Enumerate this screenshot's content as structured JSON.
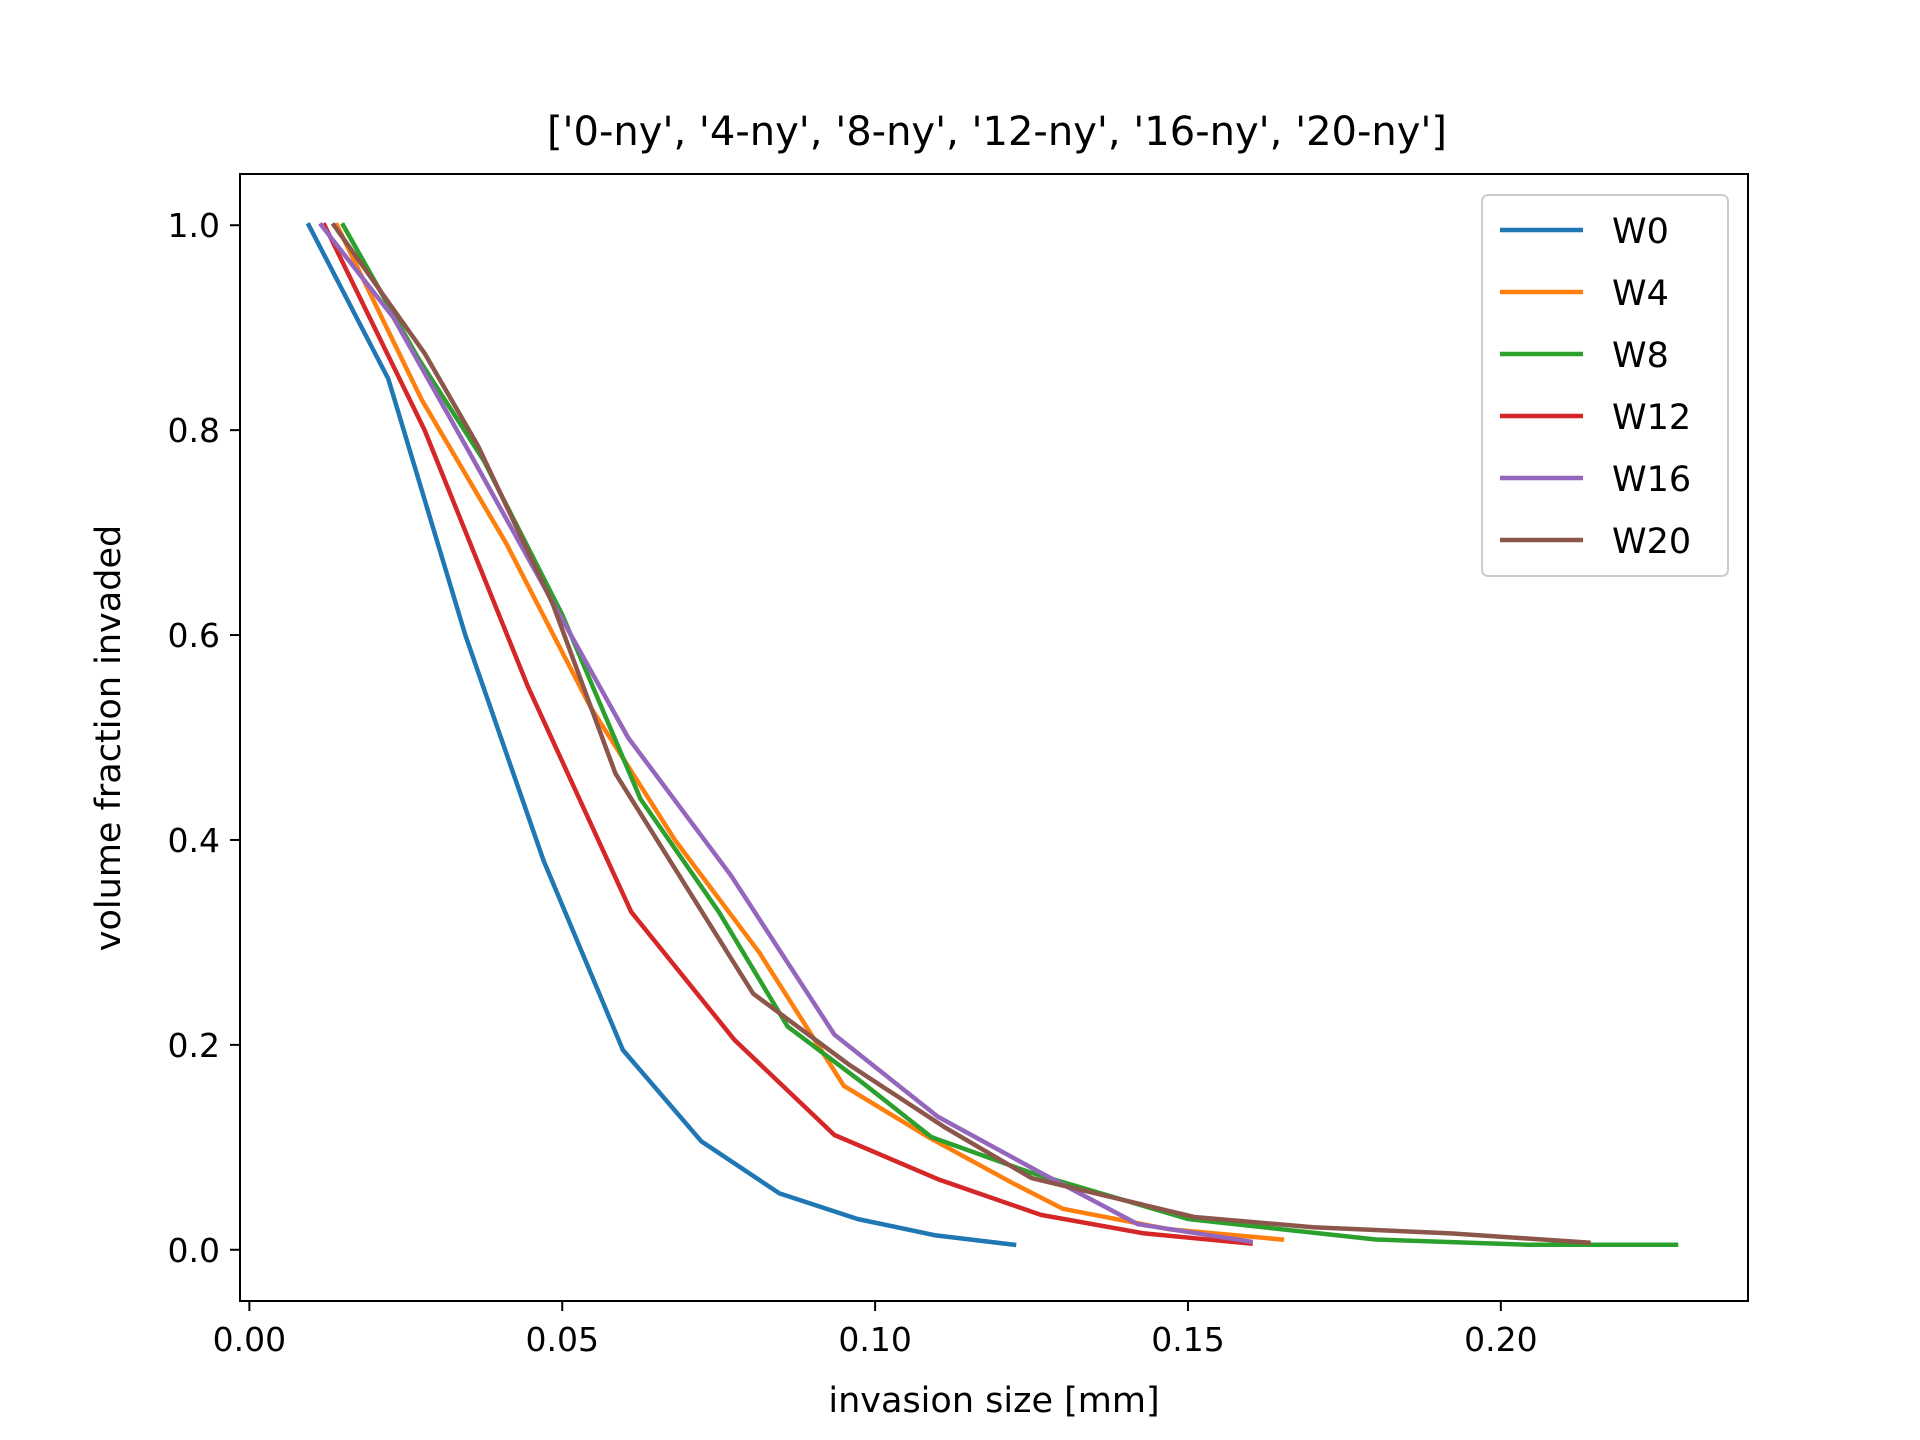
{
  "chart_data": {
    "type": "line",
    "title": "['0-ny', '4-ny', '8-ny', '12-ny', '16-ny', '20-ny']",
    "xlabel": "invasion size [mm]",
    "ylabel": "volume fraction invaded",
    "xlim": [
      -0.0015,
      0.2395
    ],
    "ylim": [
      -0.05,
      1.05
    ],
    "xticks": [
      0.0,
      0.05,
      0.1,
      0.15,
      0.2
    ],
    "xtick_labels": [
      "0.00",
      "0.05",
      "0.10",
      "0.15",
      "0.20"
    ],
    "yticks": [
      0.0,
      0.2,
      0.4,
      0.6,
      0.8,
      1.0
    ],
    "ytick_labels": [
      "0.0",
      "0.2",
      "0.4",
      "0.6",
      "0.8",
      "1.0"
    ],
    "grid": false,
    "legend_position": "top-right",
    "series": [
      {
        "name": "W0",
        "color": "#1f77b4",
        "points": [
          [
            0.0095,
            1.0
          ],
          [
            0.0222,
            0.85
          ],
          [
            0.0345,
            0.6
          ],
          [
            0.047,
            0.38
          ],
          [
            0.0597,
            0.195
          ],
          [
            0.0722,
            0.106
          ],
          [
            0.0847,
            0.055
          ],
          [
            0.0972,
            0.03
          ],
          [
            0.1097,
            0.014
          ],
          [
            0.1222,
            0.005
          ]
        ]
      },
      {
        "name": "W4",
        "color": "#ff7f0e",
        "points": [
          [
            0.014,
            1.0
          ],
          [
            0.0275,
            0.83
          ],
          [
            0.041,
            0.69
          ],
          [
            0.0545,
            0.53
          ],
          [
            0.068,
            0.4
          ],
          [
            0.0815,
            0.29
          ],
          [
            0.095,
            0.16
          ],
          [
            0.1085,
            0.11
          ],
          [
            0.122,
            0.065
          ],
          [
            0.13,
            0.04
          ],
          [
            0.147,
            0.02
          ],
          [
            0.165,
            0.01
          ]
        ]
      },
      {
        "name": "W8",
        "color": "#2ca02c",
        "points": [
          [
            0.015,
            1.0
          ],
          [
            0.027,
            0.87
          ],
          [
            0.0375,
            0.77
          ],
          [
            0.05,
            0.62
          ],
          [
            0.0625,
            0.44
          ],
          [
            0.075,
            0.33
          ],
          [
            0.086,
            0.218
          ],
          [
            0.098,
            0.163
          ],
          [
            0.109,
            0.11
          ],
          [
            0.125,
            0.075
          ],
          [
            0.15,
            0.03
          ],
          [
            0.18,
            0.01
          ],
          [
            0.204,
            0.005
          ],
          [
            0.228,
            0.005
          ]
        ]
      },
      {
        "name": "W12",
        "color": "#d62728",
        "points": [
          [
            0.012,
            1.0
          ],
          [
            0.028,
            0.8
          ],
          [
            0.0445,
            0.55
          ],
          [
            0.061,
            0.33
          ],
          [
            0.0775,
            0.205
          ],
          [
            0.0935,
            0.112
          ],
          [
            0.11,
            0.069
          ],
          [
            0.1265,
            0.034
          ],
          [
            0.143,
            0.016
          ],
          [
            0.16,
            0.006
          ]
        ]
      },
      {
        "name": "W16",
        "color": "#9467bd",
        "points": [
          [
            0.0115,
            1.0
          ],
          [
            0.023,
            0.91
          ],
          [
            0.035,
            0.78
          ],
          [
            0.045,
            0.67
          ],
          [
            0.0605,
            0.5
          ],
          [
            0.077,
            0.365
          ],
          [
            0.0935,
            0.21
          ],
          [
            0.11,
            0.13
          ],
          [
            0.1265,
            0.075
          ],
          [
            0.142,
            0.025
          ],
          [
            0.16,
            0.008
          ]
        ]
      },
      {
        "name": "W20",
        "color": "#8c564b",
        "points": [
          [
            0.0135,
            1.0
          ],
          [
            0.028,
            0.875
          ],
          [
            0.0365,
            0.785
          ],
          [
            0.0485,
            0.63
          ],
          [
            0.0585,
            0.465
          ],
          [
            0.0805,
            0.25
          ],
          [
            0.096,
            0.18
          ],
          [
            0.111,
            0.12
          ],
          [
            0.125,
            0.07
          ],
          [
            0.151,
            0.032
          ],
          [
            0.17,
            0.022
          ],
          [
            0.192,
            0.016
          ],
          [
            0.214,
            0.007
          ]
        ]
      }
    ]
  }
}
